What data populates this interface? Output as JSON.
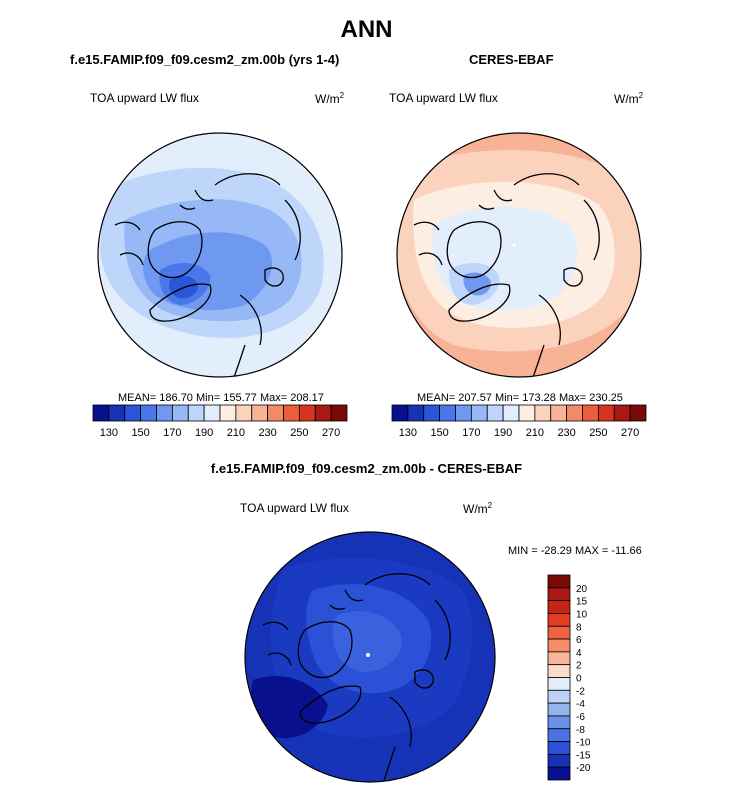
{
  "page": {
    "title": "ANN"
  },
  "chart_data": [
    {
      "type": "heatmap",
      "projection": "north-polar-stereographic",
      "title": "f.e15.FAMIP.f09_f09.cesm2_zm.00b (yrs 1-4)",
      "variable": "TOA upward LW flux",
      "units_base": "W/m",
      "units_exp": "2",
      "stats": {
        "mean_label": "MEAN=",
        "mean": "186.70",
        "min_label": "Min=",
        "min": "155.77",
        "max_label": "Max=",
        "max": "208.17"
      },
      "colorbar": {
        "orientation": "horizontal",
        "levels": [
          130,
          140,
          150,
          160,
          170,
          180,
          190,
          200,
          210,
          220,
          230,
          240,
          250,
          260,
          270
        ],
        "tick_labels": [
          "130",
          "150",
          "170",
          "190",
          "210",
          "230",
          "250",
          "270"
        ],
        "colors": [
          "#08108e",
          "#1733b4",
          "#2a55d8",
          "#4a78ea",
          "#6f98f0",
          "#97b8f6",
          "#bfd6fb",
          "#e2eefc",
          "#fdeee3",
          "#fbd3bd",
          "#f8b295",
          "#f38a67",
          "#ec5e3b",
          "#d8331e",
          "#a91812",
          "#7a0a08"
        ]
      }
    },
    {
      "type": "heatmap",
      "projection": "north-polar-stereographic",
      "title": "CERES-EBAF",
      "variable": "TOA upward LW flux",
      "units_base": "W/m",
      "units_exp": "2",
      "stats": {
        "mean_label": "MEAN=",
        "mean": "207.57",
        "min_label": "Min=",
        "min": "173.28",
        "max_label": "Max=",
        "max": "230.25"
      },
      "colorbar": {
        "orientation": "horizontal",
        "levels": [
          130,
          140,
          150,
          160,
          170,
          180,
          190,
          200,
          210,
          220,
          230,
          240,
          250,
          260,
          270
        ],
        "tick_labels": [
          "130",
          "150",
          "170",
          "190",
          "210",
          "230",
          "250",
          "270"
        ],
        "colors": [
          "#08108e",
          "#1733b4",
          "#2a55d8",
          "#4a78ea",
          "#6f98f0",
          "#97b8f6",
          "#bfd6fb",
          "#e2eefc",
          "#fdeee3",
          "#fbd3bd",
          "#f8b295",
          "#f38a67",
          "#ec5e3b",
          "#d8331e",
          "#a91812",
          "#7a0a08"
        ]
      }
    },
    {
      "type": "heatmap",
      "projection": "north-polar-stereographic",
      "title": "f.e15.FAMIP.f09_f09.cesm2_zm.00b - CERES-EBAF",
      "variable": "TOA upward LW flux",
      "units_base": "W/m",
      "units_exp": "2",
      "stats": {
        "min_label": "MIN =",
        "min": "-28.29",
        "max_label": "MAX =",
        "max": "-11.66"
      },
      "colorbar": {
        "orientation": "vertical",
        "tick_labels": [
          "20",
          "15",
          "10",
          "8",
          "6",
          "4",
          "2",
          "0",
          "-2",
          "-4",
          "-6",
          "-8",
          "-10",
          "-15",
          "-20"
        ],
        "colors": [
          "#7a0a08",
          "#a91812",
          "#c92516",
          "#e23f22",
          "#ef6440",
          "#f58c69",
          "#f9b599",
          "#fcdcc8",
          "#e4eefb",
          "#bcd3f6",
          "#93b4ef",
          "#6b91ea",
          "#4a72e4",
          "#2b51d6",
          "#1633b8",
          "#08108e"
        ]
      }
    }
  ]
}
